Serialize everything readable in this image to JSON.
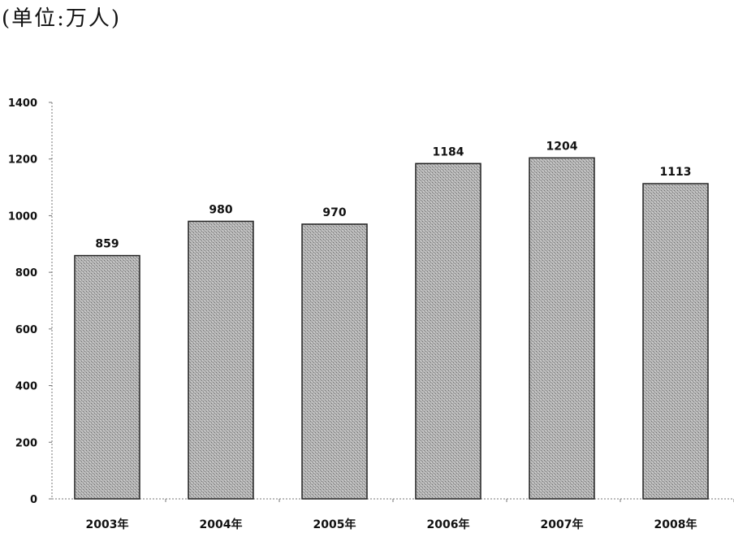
{
  "unit_note": "(单位:万人)",
  "chart_data": {
    "type": "bar",
    "categories": [
      "2003年",
      "2004年",
      "2005年",
      "2006年",
      "2007年",
      "2008年"
    ],
    "values": [
      859,
      980,
      970,
      1184,
      1204,
      1113
    ],
    "data_labels": [
      "859",
      "980",
      "970",
      "1184",
      "1204",
      "1113"
    ],
    "yticks": [
      "0",
      "200",
      "400",
      "600",
      "800",
      "1000",
      "1200",
      "1400"
    ],
    "ylim": [
      0,
      1400
    ],
    "title": "",
    "xlabel": "",
    "ylabel": "",
    "grid": false,
    "bar_fill": "#a9a9a9",
    "bar_stroke": "#222222"
  }
}
